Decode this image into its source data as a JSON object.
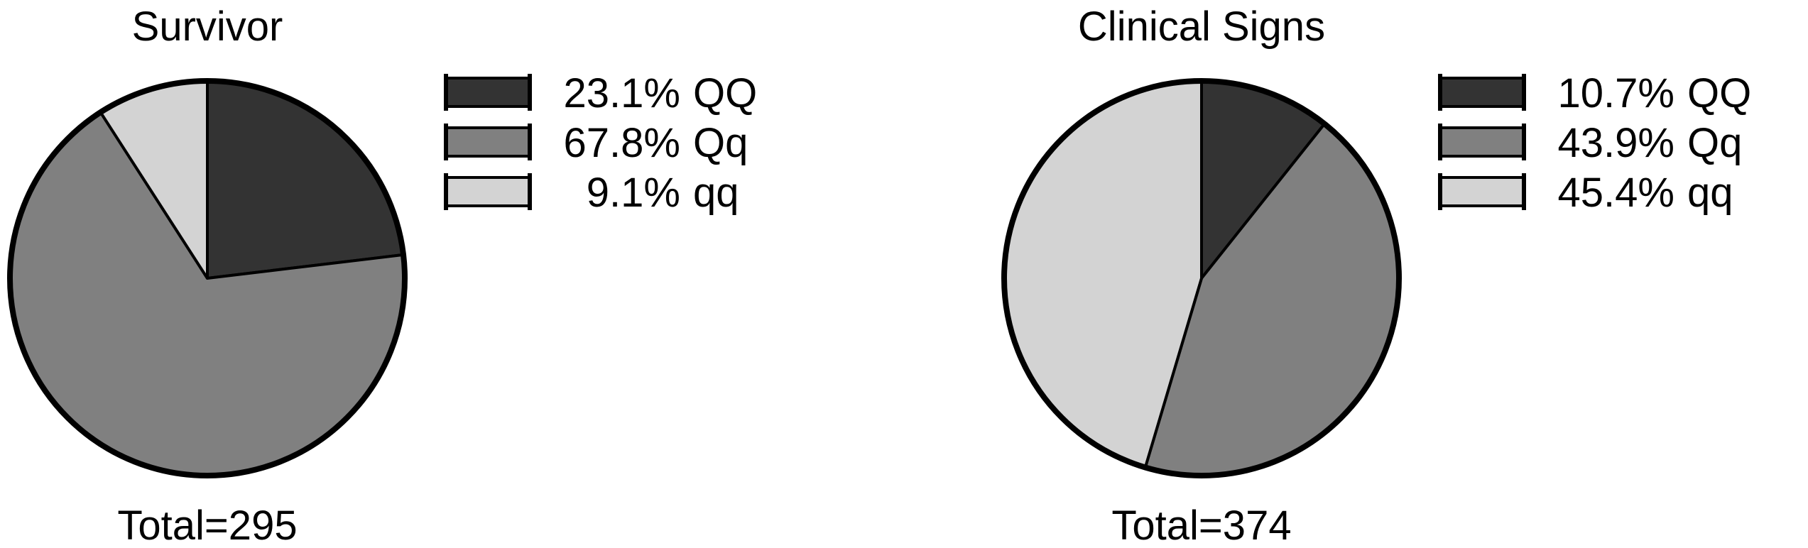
{
  "chart_data": [
    {
      "type": "pie",
      "title": "Survivor",
      "total_label": "Total=295",
      "slices": [
        {
          "label": "QQ",
          "percent": 23.1,
          "legend": "23.1% QQ",
          "color": "#333333"
        },
        {
          "label": "Qq",
          "percent": 67.8,
          "legend": "67.8% Qq",
          "color": "#808080"
        },
        {
          "label": "qq",
          "percent": 9.1,
          "legend": "9.1% qq",
          "color": "#d3d3d3"
        }
      ]
    },
    {
      "type": "pie",
      "title": "Clinical Signs",
      "total_label": "Total=374",
      "slices": [
        {
          "label": "QQ",
          "percent": 10.7,
          "legend": "10.7% QQ",
          "color": "#333333"
        },
        {
          "label": "Qq",
          "percent": 43.9,
          "legend": "43.9% Qq",
          "color": "#808080"
        },
        {
          "label": "qq",
          "percent": 45.4,
          "legend": "45.4% qq",
          "color": "#d3d3d3"
        }
      ]
    }
  ]
}
